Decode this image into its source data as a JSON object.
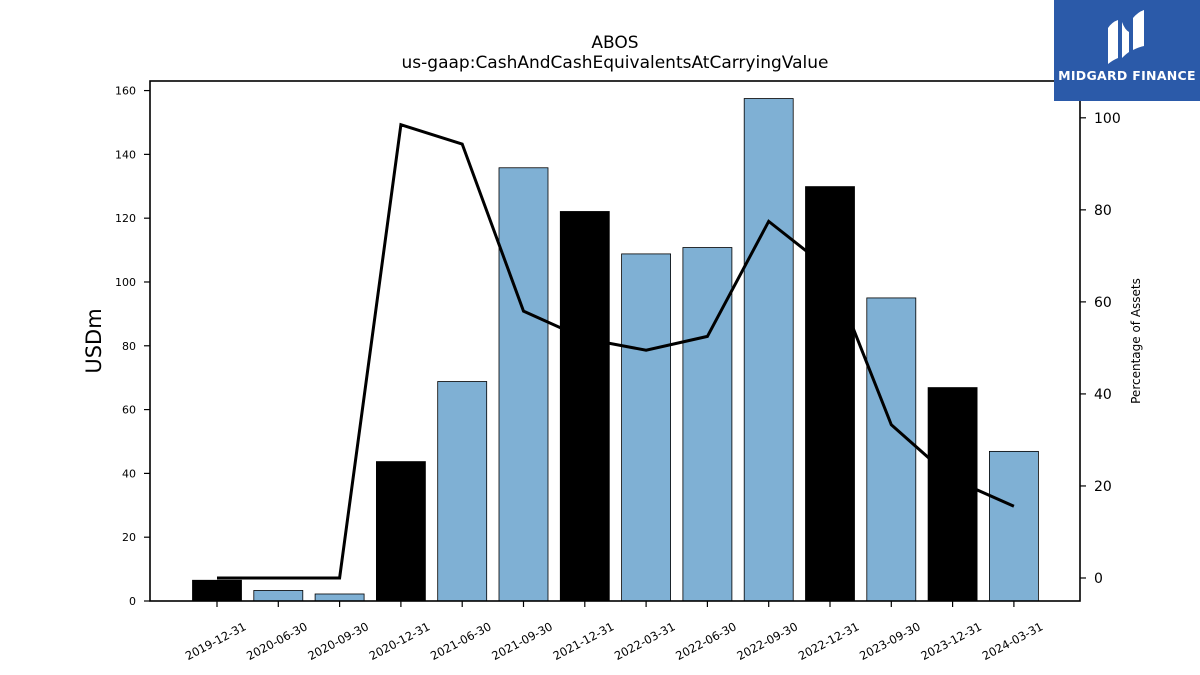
{
  "chart_data": {
    "type": "bar",
    "title": "ABOS",
    "subtitle": "us-gaap:CashAndCashEquivalentsAtCarryingValue",
    "ylabel": "USDm",
    "y2label": "Percentage of Assets",
    "categories": [
      "2019-12-31",
      "2020-06-30",
      "2020-09-30",
      "2020-12-31",
      "2021-06-30",
      "2021-09-30",
      "2021-12-31",
      "2022-03-31",
      "2022-06-30",
      "2022-09-30",
      "2022-12-31",
      "2023-09-30",
      "2023-12-31",
      "2024-03-31"
    ],
    "series": [
      {
        "type": "bar",
        "values": [
          6.5,
          3.3,
          2.2,
          43.7,
          68.8,
          135.8,
          122.1,
          108.8,
          110.8,
          157.5,
          129.9,
          95.0,
          66.9,
          46.9
        ],
        "colors": [
          "#000000",
          "#7fb0d4",
          "#7fb0d4",
          "#000000",
          "#7fb0d4",
          "#7fb0d4",
          "#000000",
          "#7fb0d4",
          "#7fb0d4",
          "#7fb0d4",
          "#000000",
          "#7fb0d4",
          "#000000",
          "#7fb0d4"
        ]
      },
      {
        "type": "line",
        "axis": "right",
        "values": [
          0,
          0,
          0,
          98.5,
          94.3,
          58.0,
          52.0,
          49.5,
          52.5,
          77.5,
          67.0,
          33.3,
          21.5,
          15.6
        ],
        "color": "#000000"
      }
    ],
    "ylim": [
      0,
      163
    ],
    "yticks": [
      0,
      20,
      40,
      60,
      80,
      100,
      120,
      140,
      160
    ],
    "y2lim": [
      -5,
      108
    ],
    "y2ticks": [
      0,
      20,
      40,
      60,
      80,
      100
    ],
    "grid": false,
    "legend": "none"
  },
  "logo": {
    "text": "MIDGARD FINANCE",
    "icon": "midgard-logo-icon",
    "background": "#2b5aa9"
  }
}
